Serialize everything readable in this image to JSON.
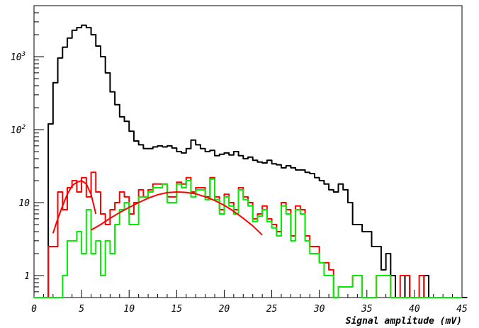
{
  "chart_data": {
    "type": "line",
    "xlabel": "Signal amplitude (mV)",
    "ylabel": "",
    "xlim": [
      0,
      45
    ],
    "ylim": [
      0.5,
      5000
    ],
    "y_scale": "log",
    "grid": false,
    "x_ticks": [
      "0",
      "5",
      "10",
      "15",
      "20",
      "25",
      "30",
      "35",
      "40",
      "45"
    ],
    "y_ticks": [
      {
        "value": 1,
        "label": "1"
      },
      {
        "value": 10,
        "label": "10"
      },
      {
        "value": 100,
        "label": "10",
        "exp": "2"
      },
      {
        "value": 1000,
        "label": "10",
        "exp": "3"
      }
    ],
    "series": [
      {
        "color": "#000000",
        "kind": "histogram",
        "bin_width": 0.5,
        "x_start": 0,
        "values": [
          0,
          0,
          0,
          120,
          440,
          960,
          1350,
          1800,
          2300,
          2500,
          2700,
          2500,
          2000,
          1400,
          1000,
          600,
          330,
          220,
          150,
          130,
          95,
          70,
          62,
          55,
          55,
          58,
          60,
          58,
          60,
          56,
          50,
          48,
          55,
          72,
          62,
          55,
          50,
          52,
          44,
          46,
          48,
          45,
          50,
          44,
          40,
          42,
          38,
          36,
          35,
          38,
          34,
          33,
          30,
          32,
          30,
          28,
          28,
          26,
          25,
          22,
          20,
          18,
          15,
          14,
          18,
          15,
          10,
          5,
          5,
          4,
          4,
          2.5,
          2.5,
          1.2,
          2,
          1,
          0,
          0,
          1,
          0,
          0,
          0,
          1,
          0,
          0,
          0,
          0,
          0,
          0,
          0,
          0,
          0
        ]
      },
      {
        "color": "#ff0000",
        "kind": "histogram",
        "bin_width": 0.5,
        "x_start": 0,
        "values": [
          0,
          0,
          0,
          2.5,
          2.5,
          14,
          8,
          16,
          20,
          14,
          22,
          12,
          26,
          14,
          7,
          5,
          8,
          10,
          14,
          12,
          7,
          10,
          15,
          12,
          15,
          18,
          18,
          18,
          12,
          12,
          19,
          18,
          22,
          14,
          16,
          16,
          12,
          22,
          12,
          8,
          13,
          10,
          8,
          16,
          12,
          10,
          6,
          7,
          9,
          6,
          5,
          4,
          10,
          8,
          3.5,
          9,
          8,
          3.5,
          2.5,
          2.5,
          1.5,
          1.5,
          1.2,
          0,
          0.7,
          0.7,
          0.7,
          1,
          1,
          0,
          0,
          0,
          1,
          1,
          1,
          0,
          0,
          1,
          1,
          0,
          0,
          1,
          0,
          0,
          0,
          0,
          0,
          0,
          0,
          0
        ]
      },
      {
        "color": "#00ee00",
        "kind": "histogram",
        "bin_width": 0.5,
        "x_start": 0,
        "values": [
          0,
          0,
          0,
          0,
          0,
          0,
          1,
          3,
          3,
          4,
          2,
          8,
          2,
          3,
          1,
          3,
          2,
          5,
          8,
          10,
          5,
          5,
          12,
          12,
          14,
          16,
          16,
          18,
          10,
          10,
          18,
          16,
          20,
          12,
          15,
          15,
          11,
          21,
          11,
          7,
          12,
          9,
          7,
          15,
          11,
          9,
          5.5,
          6.5,
          8,
          5.5,
          4.5,
          3.5,
          9,
          7,
          3,
          8,
          7,
          3,
          2,
          2,
          1.5,
          1,
          1,
          0,
          0.7,
          0.7,
          0.7,
          1,
          1,
          0,
          0,
          0,
          1,
          1,
          1,
          0,
          0,
          0,
          0,
          0,
          0,
          0,
          0,
          0,
          0,
          0,
          0,
          0,
          0,
          0
        ]
      },
      {
        "color": "#ff0000",
        "kind": "curve",
        "x": [
          2,
          2.5,
          3,
          3.5,
          4,
          4.5,
          5,
          5.5,
          6,
          6.5
        ],
        "values": [
          3.8,
          6,
          9,
          13,
          17,
          19,
          20,
          18,
          13,
          7
        ]
      },
      {
        "color": "#ff0000",
        "kind": "curve",
        "x": [
          6,
          7,
          8,
          9,
          10,
          11,
          12,
          13,
          14,
          15,
          16,
          17,
          18,
          19,
          20,
          21,
          22,
          23,
          24
        ],
        "values": [
          4.2,
          5,
          6.1,
          7.3,
          8.6,
          10,
          11.5,
          12.8,
          13.7,
          14,
          13.8,
          13.2,
          12,
          10.7,
          9.2,
          7.6,
          6.1,
          4.8,
          3.6
        ]
      }
    ]
  }
}
